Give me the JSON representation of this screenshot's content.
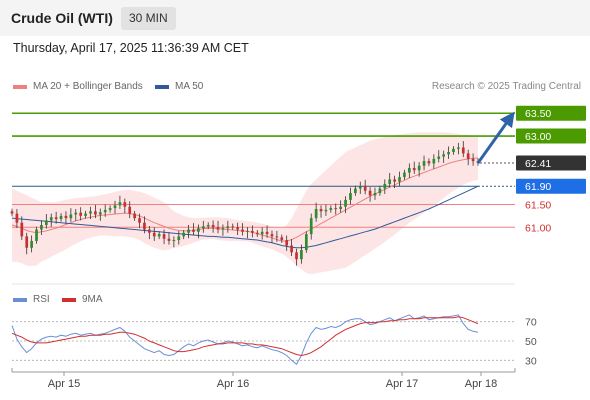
{
  "header": {
    "title": "Crude Oil (WTI)",
    "timeframe": "30 MIN"
  },
  "timestamp": "Thursday, April 17, 2025 11:36:39 AM CET",
  "legend": {
    "ma20": "MA 20 + Bollinger Bands",
    "ma50": "MA 50",
    "credit": "Research © 2025 Trading Central"
  },
  "rsi_legend": {
    "rsi": "RSI",
    "ma9": "9MA"
  },
  "colors": {
    "resistance": "#4a9a00",
    "support": "#f08080",
    "last_price": "#333333",
    "pivot": "#1e6ee6",
    "ma20": "#f08080",
    "ma50": "#2f5b9a",
    "rsi": "#6a8fd8",
    "rsi_ma": "#d03030",
    "up_candle": "#2e8b2e",
    "down_candle": "#c83030",
    "band_fill": "#fde0e0",
    "arrow": "#2f63a8"
  },
  "chart_data": [
    {
      "type": "candlestick",
      "title": "",
      "x_ticks": [
        "Apr 15",
        "Apr 16",
        "Apr 17",
        "Apr 18"
      ],
      "levels": [
        {
          "value": 63.5,
          "label": "63.50",
          "kind": "resistance"
        },
        {
          "value": 63.0,
          "label": "63.00",
          "kind": "resistance"
        },
        {
          "value": 62.41,
          "label": "62.41",
          "kind": "last"
        },
        {
          "value": 61.9,
          "label": "61.90",
          "kind": "pivot"
        },
        {
          "value": 61.5,
          "label": "61.50",
          "kind": "support"
        },
        {
          "value": 61.0,
          "label": "61.00",
          "kind": "support"
        }
      ],
      "series": [
        {
          "name": "MA 20 + Bollinger Bands"
        },
        {
          "name": "MA 50"
        }
      ],
      "close": [
        61.3,
        61.1,
        60.8,
        60.55,
        60.7,
        60.95,
        61.05,
        61.15,
        61.22,
        61.18,
        61.25,
        61.2,
        61.28,
        61.32,
        61.25,
        61.3,
        61.35,
        61.28,
        61.33,
        61.38,
        61.42,
        61.48,
        61.55,
        61.45,
        61.3,
        61.2,
        61.1,
        60.95,
        60.88,
        60.8,
        60.85,
        60.75,
        60.7,
        60.72,
        60.8,
        60.88,
        60.95,
        60.9,
        60.98,
        61.02,
        61.05,
        61.0,
        60.95,
        60.98,
        61.02,
        61.0,
        60.95,
        60.9,
        60.92,
        60.88,
        60.85,
        60.9,
        60.85,
        60.8,
        60.78,
        60.72,
        60.6,
        60.45,
        60.3,
        60.5,
        60.85,
        61.2,
        61.4,
        61.35,
        61.38,
        61.42,
        61.4,
        61.45,
        61.6,
        61.75,
        61.85,
        61.9,
        61.8,
        61.7,
        61.75,
        61.85,
        61.95,
        62.05,
        62.0,
        62.1,
        62.2,
        62.3,
        62.25,
        62.35,
        62.45,
        62.4,
        62.5,
        62.55,
        62.6,
        62.65,
        62.72,
        62.75,
        62.62,
        62.5,
        62.45,
        62.41
      ],
      "ma20": [
        61.05,
        61.02,
        60.98,
        60.93,
        60.9,
        60.88,
        60.9,
        60.92,
        60.95,
        60.98,
        61.02,
        61.06,
        61.1,
        61.14,
        61.17,
        61.2,
        61.22,
        61.24,
        61.26,
        61.27,
        61.28,
        61.29,
        61.3,
        61.31,
        61.3,
        61.28,
        61.25,
        61.2,
        61.15,
        61.1,
        61.06,
        61.02,
        60.98,
        60.95,
        60.93,
        60.92,
        60.92,
        60.93,
        60.95,
        60.97,
        60.98,
        60.98,
        60.97,
        60.96,
        60.95,
        60.94,
        60.93,
        60.92,
        60.91,
        60.89,
        60.86,
        60.83,
        60.8,
        60.77,
        60.73,
        60.7,
        60.7,
        60.73,
        60.78,
        60.84,
        60.9,
        60.96,
        61.02,
        61.08,
        61.14,
        61.2,
        61.26,
        61.32,
        61.38,
        61.44,
        61.5,
        61.56,
        61.62,
        61.68,
        61.73,
        61.78,
        61.83,
        61.88,
        61.93,
        61.98,
        62.03,
        62.08,
        62.12,
        62.16,
        62.2,
        62.24,
        62.28,
        62.32,
        62.36,
        62.4,
        62.43,
        62.46,
        62.48,
        62.5,
        62.51,
        62.52
      ],
      "band_upper": [
        61.85,
        61.8,
        61.75,
        61.7,
        61.65,
        61.6,
        61.55,
        61.55,
        61.55,
        61.55,
        61.58,
        61.6,
        61.62,
        61.64,
        61.65,
        61.66,
        61.67,
        61.68,
        61.7,
        61.72,
        61.75,
        61.78,
        61.8,
        61.82,
        61.82,
        61.8,
        61.78,
        61.75,
        61.7,
        61.65,
        61.6,
        61.55,
        61.45,
        61.35,
        61.3,
        61.25,
        61.22,
        61.2,
        61.2,
        61.21,
        61.22,
        61.22,
        61.22,
        61.21,
        61.2,
        61.18,
        61.16,
        61.15,
        61.13,
        61.12,
        61.1,
        61.08,
        61.05,
        61.02,
        61.0,
        60.98,
        61.05,
        61.2,
        61.4,
        61.6,
        61.8,
        61.95,
        62.05,
        62.15,
        62.25,
        62.35,
        62.45,
        62.55,
        62.65,
        62.7,
        62.75,
        62.8,
        62.85,
        62.9,
        62.93,
        62.96,
        62.98,
        63.0,
        63.02,
        63.04,
        63.05,
        63.06,
        63.07,
        63.08,
        63.08,
        63.08,
        63.08,
        63.08,
        63.08,
        63.07,
        63.06,
        63.05,
        63.03,
        63.02,
        63.0,
        63.0
      ],
      "band_lower": [
        60.25,
        60.24,
        60.21,
        60.16,
        60.15,
        60.16,
        60.25,
        60.29,
        60.35,
        60.41,
        60.46,
        60.52,
        60.58,
        60.64,
        60.69,
        60.74,
        60.77,
        60.8,
        60.82,
        60.82,
        60.81,
        60.8,
        60.8,
        60.8,
        60.78,
        60.76,
        60.72,
        60.65,
        60.6,
        60.55,
        60.52,
        60.49,
        60.51,
        60.55,
        60.56,
        60.59,
        60.62,
        60.66,
        60.7,
        60.73,
        60.74,
        60.74,
        60.72,
        60.71,
        60.7,
        60.7,
        60.7,
        60.69,
        60.69,
        60.66,
        60.62,
        60.58,
        60.55,
        60.52,
        60.46,
        60.42,
        60.35,
        60.26,
        60.16,
        60.08,
        60.0,
        59.97,
        59.99,
        60.01,
        60.03,
        60.05,
        60.07,
        60.09,
        60.11,
        60.18,
        60.25,
        60.32,
        60.39,
        60.46,
        60.53,
        60.6,
        60.68,
        60.76,
        60.84,
        60.92,
        61.01,
        61.1,
        61.17,
        61.24,
        61.32,
        61.4,
        61.48,
        61.56,
        61.64,
        61.73,
        61.8,
        61.87,
        61.93,
        61.98,
        62.02,
        62.04
      ],
      "ma50": [
        61.2,
        61.19,
        61.18,
        61.17,
        61.16,
        61.15,
        61.14,
        61.13,
        61.12,
        61.11,
        61.1,
        61.09,
        61.08,
        61.07,
        61.06,
        61.05,
        61.04,
        61.03,
        61.02,
        61.01,
        61.0,
        60.99,
        60.98,
        60.97,
        60.96,
        60.95,
        60.94,
        60.93,
        60.92,
        60.91,
        60.9,
        60.89,
        60.88,
        60.87,
        60.86,
        60.85,
        60.84,
        60.83,
        60.82,
        60.81,
        60.8,
        60.8,
        60.79,
        60.78,
        60.78,
        60.77,
        60.76,
        60.75,
        60.74,
        60.73,
        60.72,
        60.7,
        60.68,
        60.66,
        60.63,
        60.6,
        60.58,
        60.56,
        60.55,
        60.55,
        60.56,
        60.58,
        60.6,
        60.63,
        60.66,
        60.69,
        60.72,
        60.75,
        60.78,
        60.81,
        60.84,
        60.87,
        60.9,
        60.93,
        60.96,
        61.0,
        61.04,
        61.08,
        61.12,
        61.16,
        61.2,
        61.24,
        61.28,
        61.32,
        61.36,
        61.4,
        61.45,
        61.5,
        61.55,
        61.6,
        61.65,
        61.7,
        61.75,
        61.8,
        61.85,
        61.9
      ]
    },
    {
      "type": "line",
      "title": "",
      "y_ticks": [
        70,
        50,
        30
      ],
      "ylim": [
        20,
        80
      ],
      "series": [
        {
          "name": "RSI",
          "values": [
            66,
            52,
            44,
            38,
            42,
            48,
            52,
            54,
            55,
            54,
            56,
            55,
            57,
            58,
            56,
            57,
            58,
            56,
            57,
            58,
            60,
            62,
            64,
            60,
            54,
            50,
            46,
            42,
            40,
            38,
            40,
            36,
            35,
            36,
            40,
            44,
            47,
            45,
            48,
            50,
            51,
            49,
            47,
            48,
            50,
            49,
            47,
            45,
            46,
            44,
            43,
            45,
            43,
            41,
            40,
            38,
            35,
            30,
            26,
            35,
            48,
            58,
            64,
            62,
            63,
            65,
            64,
            66,
            70,
            72,
            73,
            73,
            70,
            67,
            68,
            70,
            72,
            74,
            71,
            73,
            75,
            77,
            73,
            74,
            76,
            72,
            73,
            74,
            75,
            75,
            76,
            77,
            68,
            62,
            60,
            59
          ]
        },
        {
          "name": "9MA",
          "values": [
            58,
            56,
            54,
            51,
            49,
            48,
            48,
            48,
            49,
            50,
            51,
            52,
            53,
            54,
            55,
            55,
            56,
            56,
            56,
            57,
            57,
            58,
            59,
            59,
            58,
            57,
            55,
            53,
            50,
            48,
            46,
            44,
            42,
            40,
            39,
            39,
            40,
            41,
            42,
            44,
            45,
            46,
            47,
            47,
            48,
            48,
            48,
            48,
            47,
            47,
            46,
            46,
            45,
            44,
            43,
            42,
            40,
            38,
            36,
            35,
            36,
            38,
            41,
            44,
            48,
            52,
            56,
            59,
            62,
            64,
            66,
            68,
            69,
            69,
            69,
            70,
            70,
            71,
            71,
            72,
            72,
            73,
            73,
            73,
            74,
            74,
            74,
            74,
            74,
            74,
            74,
            75,
            74,
            72,
            70,
            68
          ]
        }
      ]
    }
  ]
}
